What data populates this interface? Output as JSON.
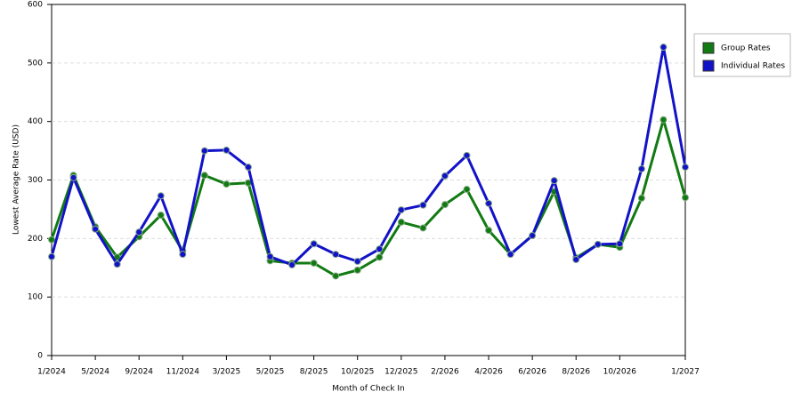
{
  "chart_data": {
    "type": "line",
    "x_label": "Month of Check In",
    "y_label": "Lowest Average Rate (USD)",
    "categories": [
      "1/2024",
      null,
      "5/2024",
      null,
      "9/2024",
      null,
      "11/2024",
      null,
      "3/2025",
      null,
      "5/2025",
      null,
      "8/2025",
      null,
      "10/2025",
      null,
      "12/2025",
      null,
      "2/2026",
      null,
      "4/2026",
      null,
      "6/2026",
      null,
      "8/2026",
      null,
      "10/2026",
      null,
      null,
      "1/2027"
    ],
    "series": [
      {
        "name": "Group Rates",
        "color": "#127a12",
        "values": [
          198,
          308,
          220,
          168,
          203,
          240,
          179,
          308,
          293,
          295,
          162,
          158,
          158,
          136,
          146,
          168,
          228,
          218,
          258,
          284,
          214,
          173,
          205,
          280,
          167,
          190,
          185,
          269,
          403,
          270
        ]
      },
      {
        "name": "Individual Rates",
        "color": "#1212c8",
        "values": [
          169,
          304,
          216,
          156,
          211,
          273,
          173,
          350,
          351,
          322,
          169,
          155,
          191,
          173,
          161,
          182,
          249,
          257,
          307,
          342,
          260,
          173,
          205,
          299,
          164,
          190,
          191,
          319,
          527,
          322
        ]
      }
    ],
    "ylim": [
      0,
      600
    ],
    "yticks": [
      0,
      100,
      200,
      300,
      400,
      500,
      600
    ],
    "grid": true,
    "legend": "right"
  }
}
